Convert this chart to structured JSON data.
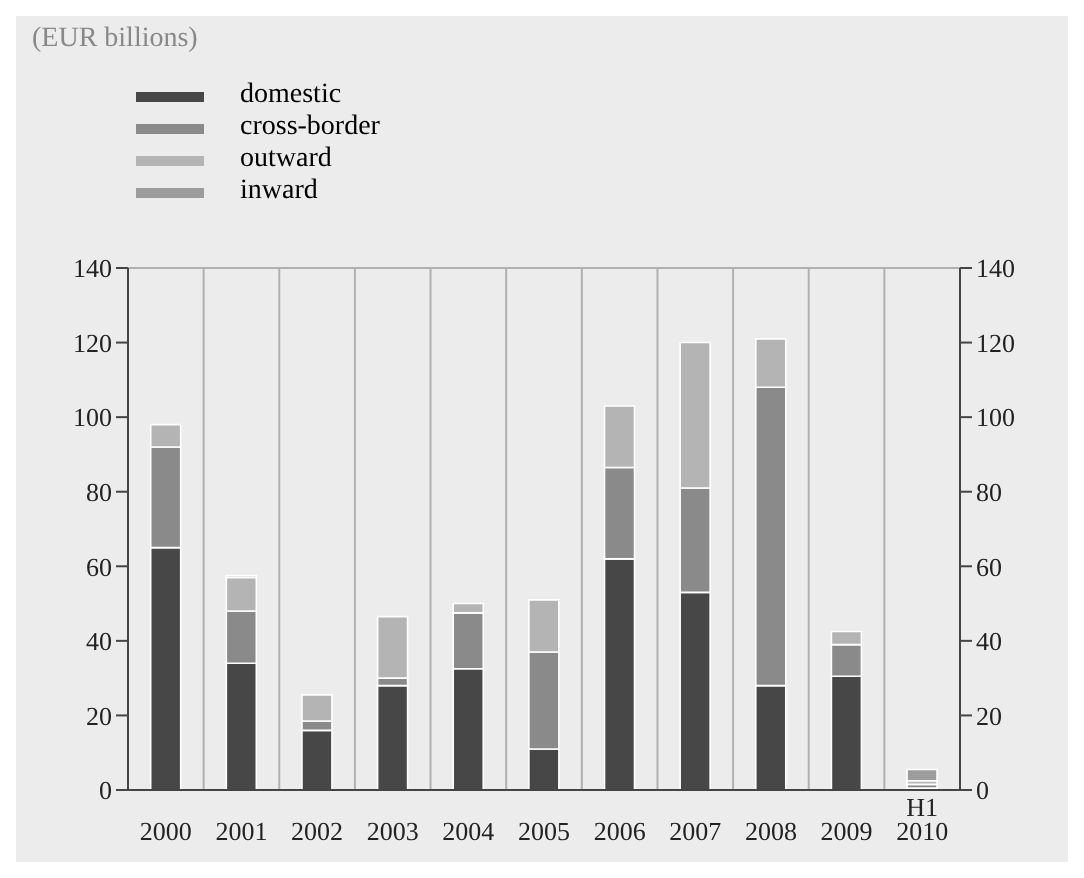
{
  "chart_data": {
    "type": "bar",
    "stacked": true,
    "annotations": [
      "(EUR billions)"
    ],
    "categories": [
      "2000",
      "2001",
      "2002",
      "2003",
      "2004",
      "2005",
      "2006",
      "2007",
      "2008",
      "2009",
      "H1\n2010"
    ],
    "series": [
      {
        "name": "domestic",
        "color": "#474747",
        "values": [
          65,
          34,
          16,
          28,
          32.5,
          11,
          62,
          53,
          28,
          30.5,
          0.5
        ]
      },
      {
        "name": "cross-border",
        "color": "#8a8a8a",
        "values": [
          27,
          14,
          2.5,
          2,
          15,
          26,
          24.5,
          28,
          80,
          8.5,
          1
        ]
      },
      {
        "name": "outward",
        "color": "#b4b4b4",
        "values": [
          6,
          9,
          7,
          16.5,
          2.5,
          14,
          16.5,
          39,
          13,
          3.5,
          1
        ]
      },
      {
        "name": "inward",
        "color": "#9c9c9c",
        "values": [
          0,
          0.5,
          0,
          0,
          0,
          0,
          0,
          0,
          0,
          0,
          3
        ]
      }
    ],
    "ylim": [
      0,
      140
    ],
    "yticks": [
      0,
      20,
      40,
      60,
      80,
      100,
      120,
      140
    ],
    "y2lim": [
      0,
      140
    ],
    "y2ticks": [
      0,
      20,
      40,
      60,
      80,
      100,
      120,
      140
    ],
    "grid": true,
    "legend": "top left"
  }
}
